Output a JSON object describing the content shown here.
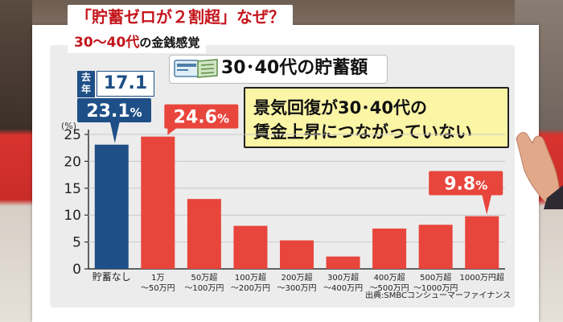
{
  "headline": "「貯蓄ゼロが２割超」なぜ？",
  "subheadline": {
    "highlight": "30〜40代",
    "rest": "の金銭感覚"
  },
  "last_year": {
    "label": "去年",
    "value": "17.1"
  },
  "callout": {
    "line1": "景気回復が30･40代の",
    "line2": "賃金上昇につながっていない"
  },
  "source": "出典:SMBCコンシューマーファイナンス",
  "colors": {
    "highlight_bar": "#1f4f87",
    "bar": "#e8453c",
    "callout_bg": "#fbf5a6"
  },
  "chart_data": {
    "type": "bar",
    "title": "30･40代の貯蓄額",
    "ylabel": "(%)",
    "ylim": [
      0,
      25
    ],
    "yticks": [
      0,
      5,
      10,
      15,
      20,
      25
    ],
    "categories": [
      [
        "貯蓄なし"
      ],
      [
        "1万",
        "〜50万円"
      ],
      [
        "50万超",
        "〜100万円"
      ],
      [
        "100万超",
        "〜200万円"
      ],
      [
        "200万超",
        "〜300万円"
      ],
      [
        "300万超",
        "〜400万円"
      ],
      [
        "400万超",
        "〜500万円"
      ],
      [
        "500万超",
        "〜1000万円"
      ],
      [
        "1000万円超"
      ]
    ],
    "values": [
      23.1,
      24.6,
      13.0,
      8.0,
      5.3,
      2.3,
      7.5,
      8.2,
      9.8
    ],
    "highlighted_index": 0,
    "value_labels": [
      {
        "index": 0,
        "text": "23.1",
        "unit": "%"
      },
      {
        "index": 1,
        "text": "24.6",
        "unit": "%"
      },
      {
        "index": 8,
        "text": "9.8",
        "unit": "%"
      }
    ]
  }
}
